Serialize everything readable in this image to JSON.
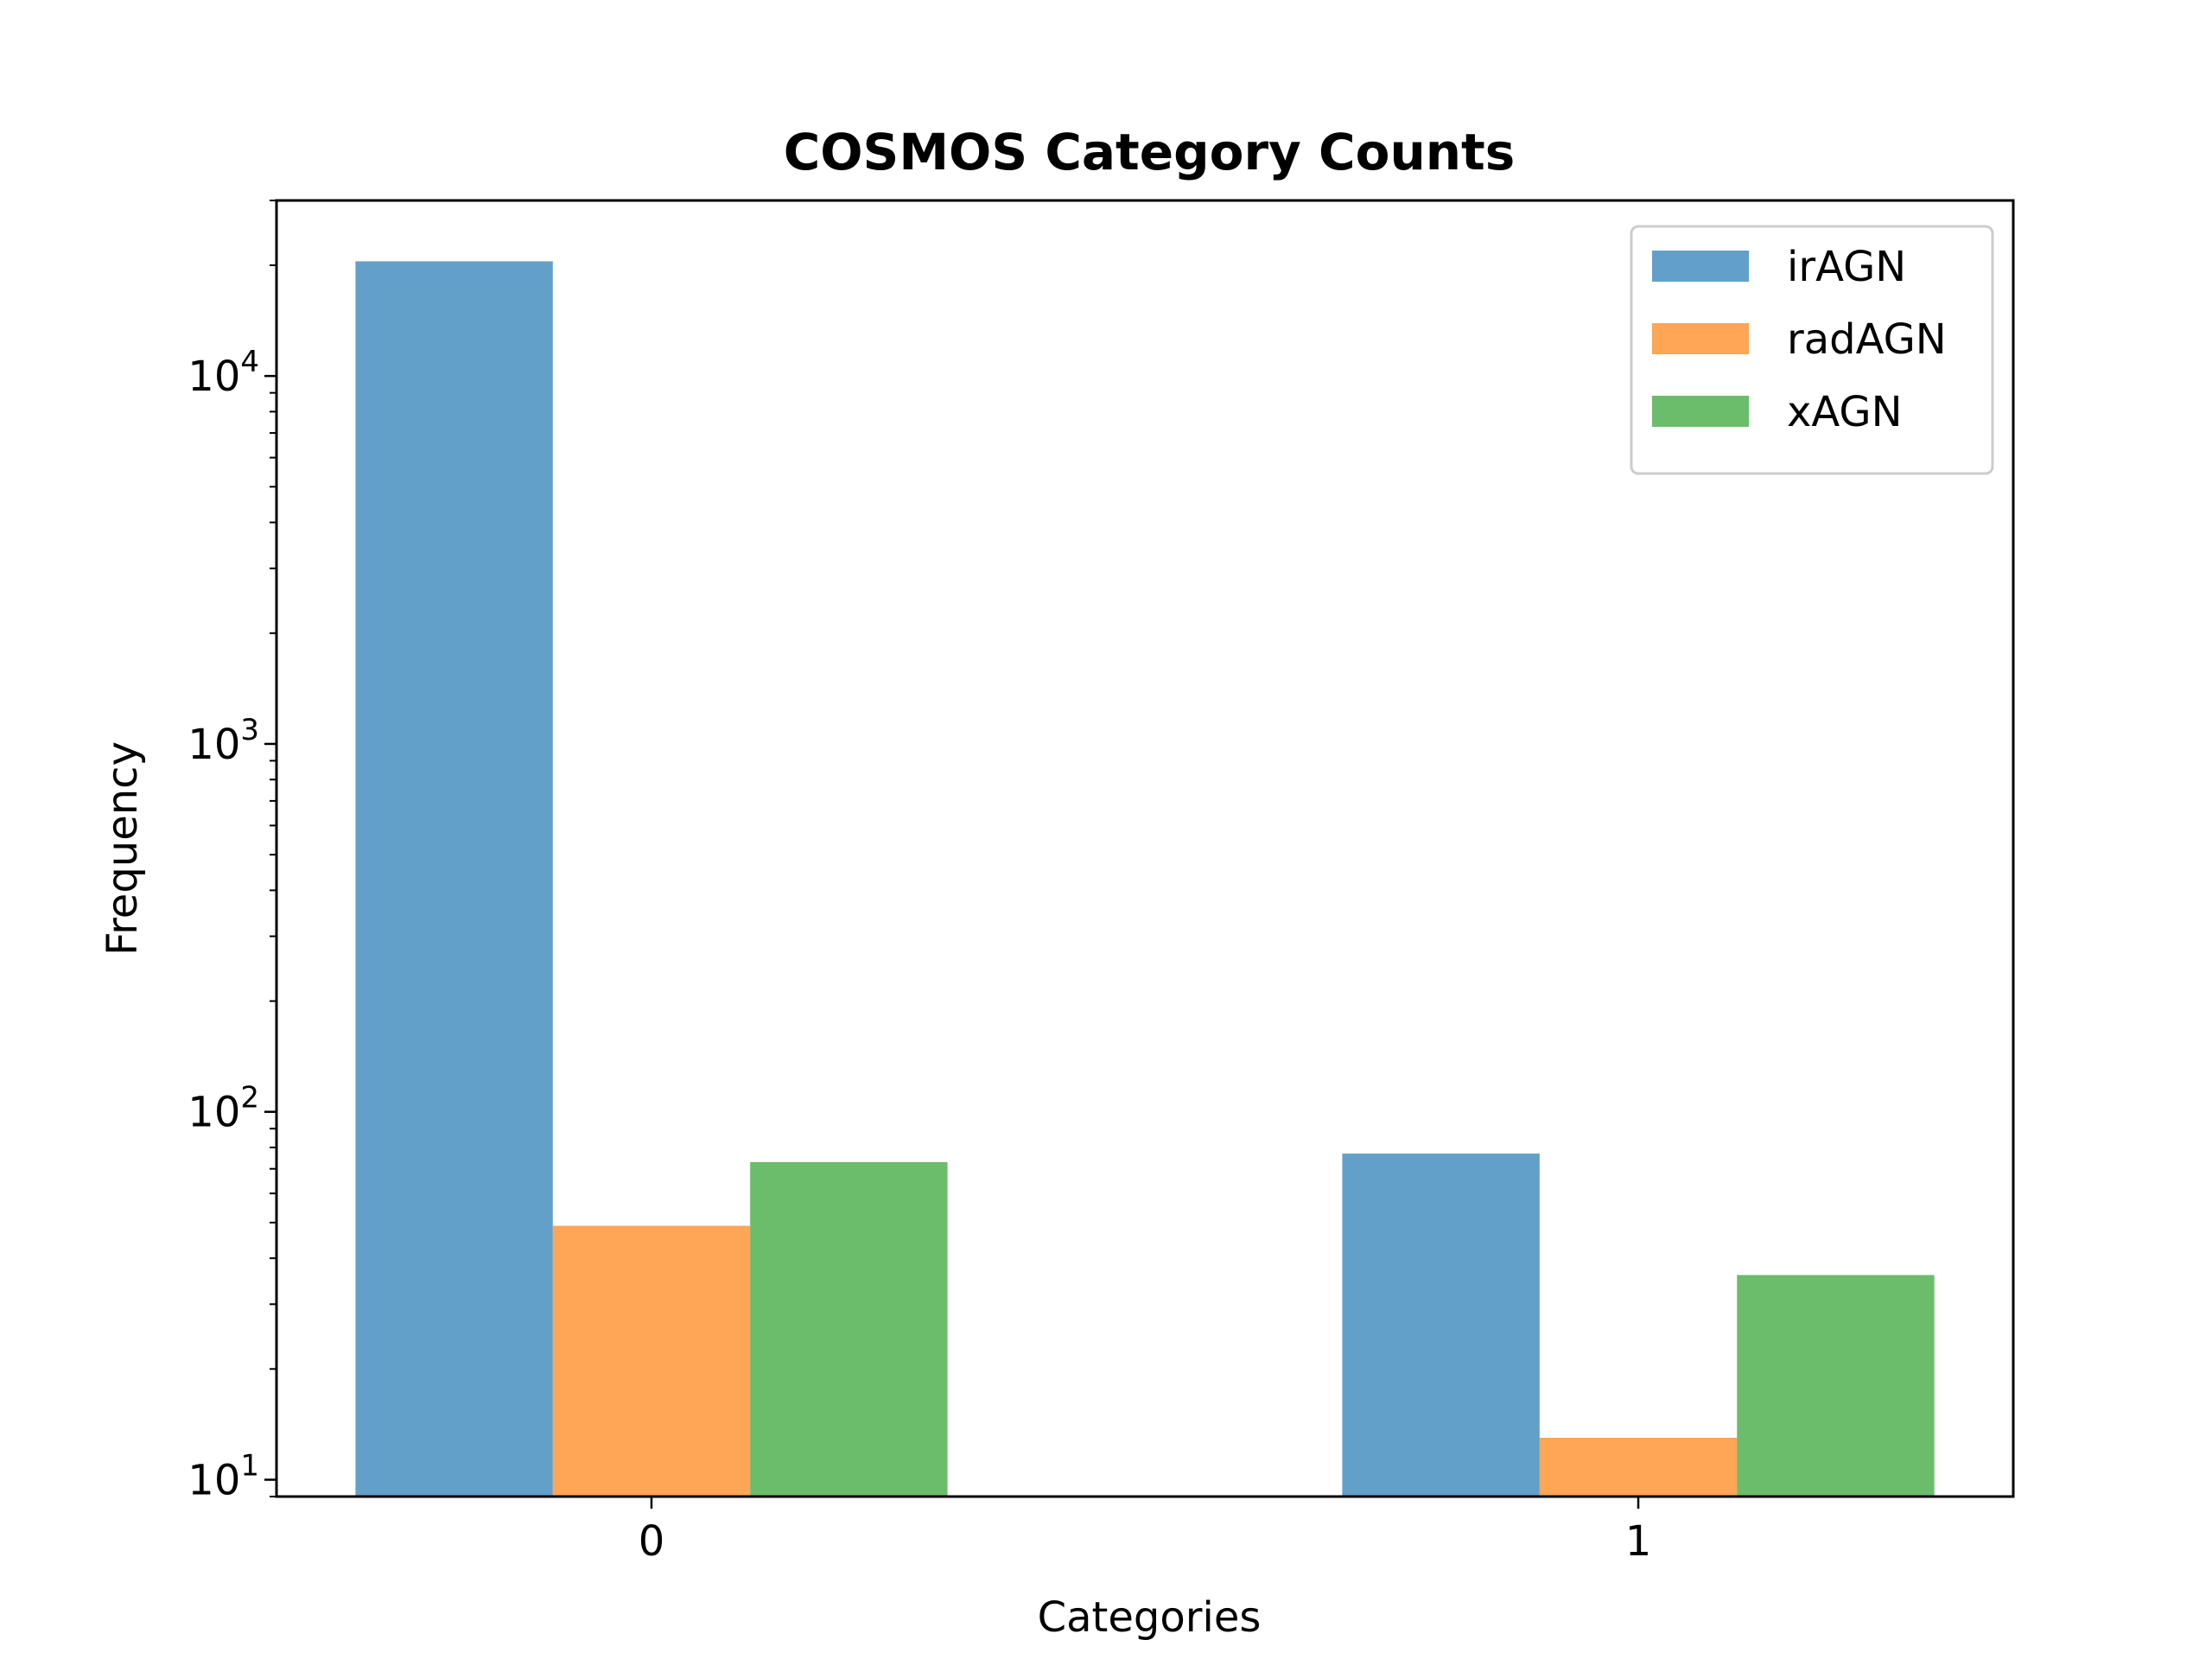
{
  "chart_data": {
    "type": "bar",
    "title": "COSMOS Category Counts",
    "xlabel": "Categories",
    "ylabel": "Frequency",
    "yscale": "log",
    "ylim": [
      9,
      30000
    ],
    "categories": [
      "0",
      "1"
    ],
    "y_ticks": [
      {
        "value": 10,
        "base": "10",
        "exp": "1"
      },
      {
        "value": 100,
        "base": "10",
        "exp": "2"
      },
      {
        "value": 1000,
        "base": "10",
        "exp": "3"
      },
      {
        "value": 10000,
        "base": "10",
        "exp": "4"
      }
    ],
    "series": [
      {
        "name": "irAGN",
        "color": "#1f77b4",
        "values": [
          20500,
          77
        ]
      },
      {
        "name": "radAGN",
        "color": "#ff7f0e",
        "values": [
          49,
          13
        ]
      },
      {
        "name": "xAGN",
        "color": "#2ca02c",
        "values": [
          73,
          36
        ]
      }
    ],
    "legend": "top-right",
    "grid": false
  }
}
